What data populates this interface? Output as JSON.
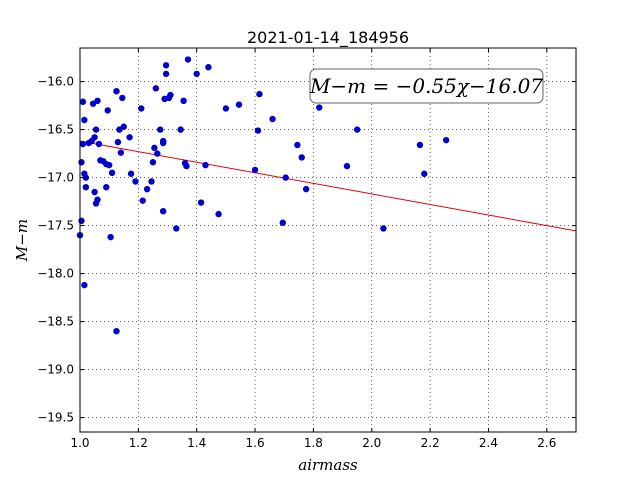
{
  "chart_data": {
    "type": "scatter",
    "title": "2021-01-14_184956",
    "xlabel": "airmass",
    "ylabel": "M−m",
    "xlim": [
      1.0,
      2.7
    ],
    "ylim": [
      -15.65,
      -19.65
    ],
    "y_inverted": true,
    "xticks": [
      1.0,
      1.2,
      1.4,
      1.6,
      1.8,
      2.0,
      2.2,
      2.4,
      2.6
    ],
    "xtick_labels": [
      "1.0",
      "1.2",
      "1.4",
      "1.6",
      "1.8",
      "2.0",
      "2.2",
      "2.4",
      "2.6"
    ],
    "yticks": [
      -16.0,
      -16.5,
      -17.0,
      -17.5,
      -18.0,
      -18.5,
      -19.0,
      -19.5
    ],
    "ytick_labels": [
      "−16.0",
      "−16.5",
      "−17.0",
      "−17.5",
      "−18.0",
      "−18.5",
      "−19.0",
      "−19.5"
    ],
    "grid": true,
    "annotation": "M−m = −0.55χ−16.07",
    "fit": {
      "slope": -0.55,
      "intercept": -16.07,
      "color": "#e8000b"
    },
    "point_color": "#0000cc",
    "points": [
      [
        1.0,
        -17.6
      ],
      [
        1.005,
        -16.84
      ],
      [
        1.005,
        -17.45
      ],
      [
        1.01,
        -16.65
      ],
      [
        1.01,
        -16.21
      ],
      [
        1.015,
        -16.4
      ],
      [
        1.015,
        -16.96
      ],
      [
        1.02,
        -17.0
      ],
      [
        1.02,
        -17.1
      ],
      [
        1.015,
        -18.12
      ],
      [
        1.03,
        -16.64
      ],
      [
        1.04,
        -16.62
      ],
      [
        1.045,
        -16.23
      ],
      [
        1.05,
        -16.58
      ],
      [
        1.05,
        -17.15
      ],
      [
        1.055,
        -16.5
      ],
      [
        1.055,
        -17.27
      ],
      [
        1.06,
        -16.2
      ],
      [
        1.06,
        -17.23
      ],
      [
        1.065,
        -16.65
      ],
      [
        1.07,
        -16.82
      ],
      [
        1.08,
        -16.83
      ],
      [
        1.09,
        -16.86
      ],
      [
        1.09,
        -17.1
      ],
      [
        1.095,
        -16.3
      ],
      [
        1.1,
        -16.87
      ],
      [
        1.105,
        -17.62
      ],
      [
        1.11,
        -16.95
      ],
      [
        1.125,
        -16.1
      ],
      [
        1.125,
        -18.6
      ],
      [
        1.13,
        -16.63
      ],
      [
        1.135,
        -16.5
      ],
      [
        1.14,
        -16.74
      ],
      [
        1.145,
        -16.17
      ],
      [
        1.15,
        -16.47
      ],
      [
        1.17,
        -16.58
      ],
      [
        1.175,
        -16.96
      ],
      [
        1.19,
        -17.04
      ],
      [
        1.21,
        -16.28
      ],
      [
        1.215,
        -17.24
      ],
      [
        1.23,
        -17.12
      ],
      [
        1.245,
        -17.04
      ],
      [
        1.25,
        -16.84
      ],
      [
        1.255,
        -16.69
      ],
      [
        1.26,
        -16.07
      ],
      [
        1.265,
        -16.75
      ],
      [
        1.275,
        -16.5
      ],
      [
        1.285,
        -16.64
      ],
      [
        1.285,
        -16.62
      ],
      [
        1.285,
        -17.35
      ],
      [
        1.29,
        -16.18
      ],
      [
        1.295,
        -15.83
      ],
      [
        1.295,
        -15.92
      ],
      [
        1.305,
        -16.17
      ],
      [
        1.31,
        -16.14
      ],
      [
        1.33,
        -17.53
      ],
      [
        1.345,
        -16.5
      ],
      [
        1.355,
        -16.2
      ],
      [
        1.36,
        -16.85
      ],
      [
        1.365,
        -16.88
      ],
      [
        1.37,
        -15.77
      ],
      [
        1.4,
        -15.92
      ],
      [
        1.415,
        -17.26
      ],
      [
        1.43,
        -16.87
      ],
      [
        1.44,
        -15.85
      ],
      [
        1.475,
        -17.38
      ],
      [
        1.5,
        -16.28
      ],
      [
        1.545,
        -16.24
      ],
      [
        1.6,
        -16.92
      ],
      [
        1.61,
        -16.51
      ],
      [
        1.615,
        -16.13
      ],
      [
        1.66,
        -16.39
      ],
      [
        1.695,
        -17.47
      ],
      [
        1.705,
        -17.0
      ],
      [
        1.745,
        -16.66
      ],
      [
        1.76,
        -16.79
      ],
      [
        1.775,
        -17.12
      ],
      [
        1.82,
        -16.27
      ],
      [
        1.915,
        -16.88
      ],
      [
        1.95,
        -16.5
      ],
      [
        2.04,
        -17.53
      ],
      [
        2.165,
        -16.66
      ],
      [
        2.18,
        -16.96
      ],
      [
        2.255,
        -16.61
      ]
    ]
  }
}
